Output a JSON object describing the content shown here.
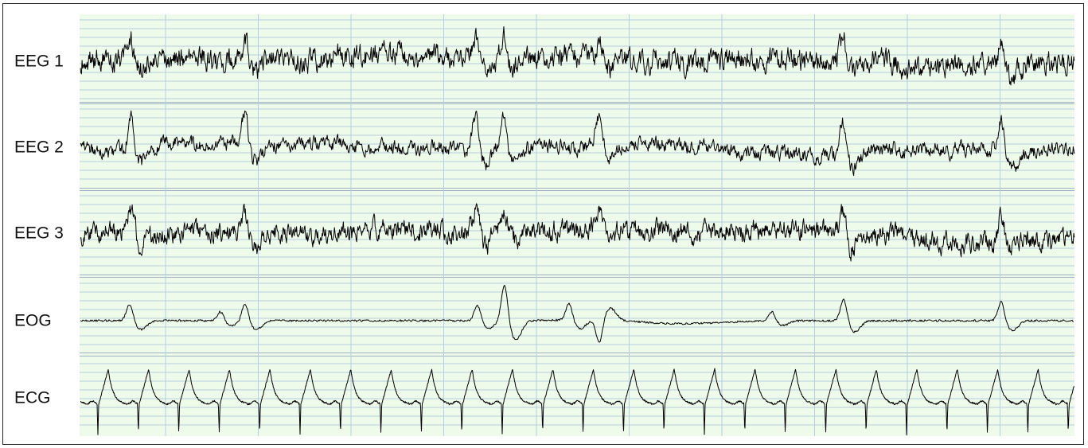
{
  "channels": [
    {
      "label": "EEG 1"
    },
    {
      "label": "EEG 2"
    },
    {
      "label": "EEG 3"
    },
    {
      "label": "EOG"
    },
    {
      "label": "ECG"
    }
  ]
}
